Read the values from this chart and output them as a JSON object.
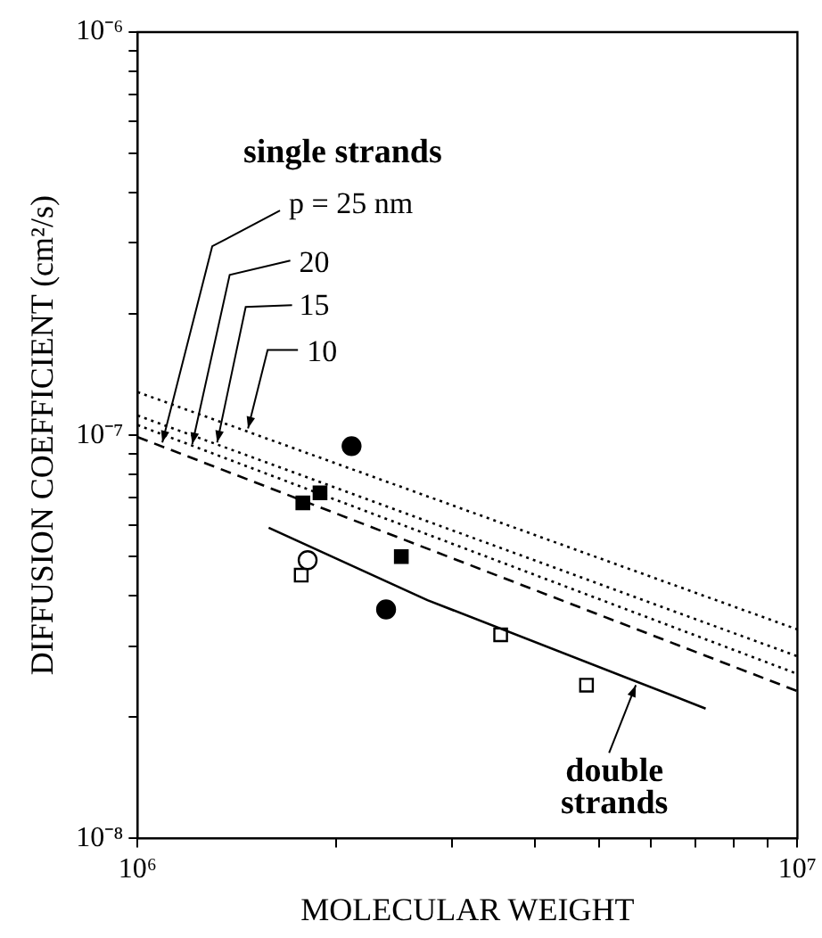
{
  "chart_data": {
    "type": "line",
    "xlabel": "MOLECULAR WEIGHT",
    "ylabel": "DIFFUSION COEFFICIENT (cm²/s)",
    "log": "xy",
    "grid": false,
    "legend": false,
    "xlim": [
      1000000,
      10000000
    ],
    "xticks": [
      {
        "value": 1000000,
        "label": "10⁶"
      },
      {
        "value": 2000000,
        "label": null
      },
      {
        "value": 3000000,
        "label": null
      },
      {
        "value": 4000000,
        "label": null
      },
      {
        "value": 5000000,
        "label": null
      },
      {
        "value": 6000000,
        "label": null
      },
      {
        "value": 7000000,
        "label": null
      },
      {
        "value": 8000000,
        "label": null
      },
      {
        "value": 9000000,
        "label": null
      },
      {
        "value": 10000000,
        "label": "10⁷"
      }
    ],
    "ylim": [
      1e-08,
      1e-06
    ],
    "yticks": [
      {
        "value": 1e-08,
        "label": "10⁻⁸"
      },
      {
        "value": 2e-08,
        "label": null
      },
      {
        "value": 3e-08,
        "label": null
      },
      {
        "value": 4e-08,
        "label": null
      },
      {
        "value": 5e-08,
        "label": null
      },
      {
        "value": 6e-08,
        "label": null
      },
      {
        "value": 7e-08,
        "label": null
      },
      {
        "value": 8e-08,
        "label": null
      },
      {
        "value": 9e-08,
        "label": null
      },
      {
        "value": 1e-07,
        "label": "10⁻⁷"
      },
      {
        "value": 2e-07,
        "label": null
      },
      {
        "value": 3e-07,
        "label": null
      },
      {
        "value": 4e-07,
        "label": null
      },
      {
        "value": 5e-07,
        "label": null
      },
      {
        "value": 6e-07,
        "label": null
      },
      {
        "value": 7e-07,
        "label": null
      },
      {
        "value": 8e-07,
        "label": null
      },
      {
        "value": 9e-07,
        "label": null
      },
      {
        "value": 1e-06,
        "label": "10⁻⁶"
      }
    ],
    "series": [
      {
        "color": "#000000",
        "line_style": "dotted",
        "marker": "none",
        "x": [
          1000000,
          10000000
        ],
        "values": [
          1.28e-07,
          3.3e-08
        ]
      },
      {
        "color": "#000000",
        "line_style": "dotted",
        "marker": "none",
        "x": [
          1000000,
          10000000
        ],
        "values": [
          1.12e-07,
          2.83e-08
        ]
      },
      {
        "color": "#000000",
        "line_style": "dotted",
        "marker": "none",
        "x": [
          1000000,
          10000000
        ],
        "values": [
          1.06e-07,
          2.56e-08
        ]
      },
      {
        "color": "#000000",
        "line_style": "dashed",
        "marker": "none",
        "x": [
          1000000,
          10000000
        ],
        "values": [
          9.9e-08,
          2.32e-08
        ]
      },
      {
        "color": "#000000",
        "line_style": "solid",
        "marker": "none",
        "x": [
          1580000,
          2750000,
          7260000
        ],
        "values": [
          5.9e-08,
          3.9e-08,
          2.1e-08
        ]
      },
      {
        "type": "scatter",
        "color": "#000000",
        "marker": "circle",
        "x": [
          2110000,
          2380000
        ],
        "values": [
          9.4e-08,
          3.7e-08
        ]
      },
      {
        "type": "scatter",
        "color": "#000000",
        "marker": "square",
        "x": [
          1780000,
          1890000,
          2510000
        ],
        "values": [
          6.8e-08,
          7.2e-08,
          5e-08
        ]
      },
      {
        "type": "scatter",
        "color": "#ffffff",
        "marker": "circle",
        "x": [
          1810000
        ],
        "values": [
          4.9e-08
        ]
      },
      {
        "type": "scatter",
        "color": "#ffffff",
        "marker": "square",
        "x": [
          1770000,
          3550000,
          4790000
        ],
        "values": [
          4.5e-08,
          3.2e-08,
          2.4e-08
        ]
      }
    ],
    "annotations": [
      "single strands",
      {
        "text": "p = 25 nm",
        "x": 1090000,
        "y": 9.6e-08
      },
      {
        "text": "20",
        "x": 1210000,
        "y": 9.5e-08
      },
      {
        "text": "15",
        "x": 1320000,
        "y": 9.6e-08
      },
      {
        "text": "10",
        "x": 1470000,
        "y": 1.04e-07
      },
      {
        "text": "double strands",
        "x": 5690000,
        "y": 2.4e-08
      }
    ]
  }
}
